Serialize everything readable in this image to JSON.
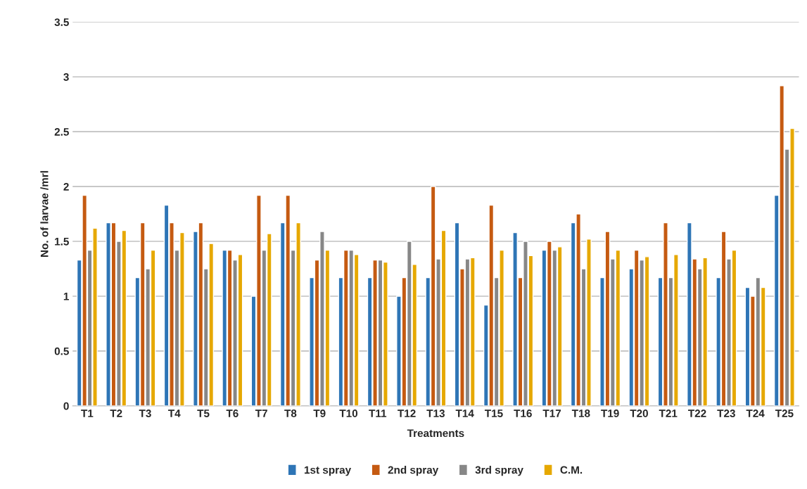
{
  "chart_data": {
    "type": "bar",
    "xlabel": "Treatments",
    "ylabel": "No. of larvae /mrl",
    "categories": [
      "T1",
      "T2",
      "T3",
      "T4",
      "T5",
      "T6",
      "T7",
      "T8",
      "T9",
      "T10",
      "T11",
      "T12",
      "T13",
      "T14",
      "T15",
      "T16",
      "T17",
      "T18",
      "T19",
      "T20",
      "T21",
      "T22",
      "T23",
      "T24",
      "T25"
    ],
    "series": [
      {
        "name": "1st spray",
        "color": "#2e75b6",
        "values": [
          1.33,
          1.67,
          1.17,
          1.83,
          1.59,
          1.42,
          1.0,
          1.67,
          1.17,
          1.17,
          1.17,
          1.0,
          1.17,
          1.67,
          0.92,
          1.58,
          1.42,
          1.67,
          1.17,
          1.25,
          1.17,
          1.67,
          1.17,
          1.08,
          1.92
        ]
      },
      {
        "name": "2nd spray",
        "color": "#c55a11",
        "values": [
          1.92,
          1.67,
          1.67,
          1.67,
          1.67,
          1.42,
          1.92,
          1.92,
          1.33,
          1.42,
          1.33,
          1.17,
          2.0,
          1.25,
          1.83,
          1.17,
          1.5,
          1.75,
          1.59,
          1.42,
          1.67,
          1.34,
          1.59,
          1.0,
          2.92
        ]
      },
      {
        "name": "3rd spray",
        "color": "#878787",
        "values": [
          1.42,
          1.5,
          1.25,
          1.42,
          1.25,
          1.33,
          1.42,
          1.42,
          1.59,
          1.42,
          1.33,
          1.5,
          1.34,
          1.34,
          1.17,
          1.5,
          1.42,
          1.25,
          1.34,
          1.33,
          1.17,
          1.25,
          1.34,
          1.17,
          2.34
        ]
      },
      {
        "name": "C.M.",
        "color": "#e6a800",
        "values": [
          1.62,
          1.6,
          1.42,
          1.58,
          1.48,
          1.38,
          1.57,
          1.67,
          1.42,
          1.38,
          1.31,
          1.29,
          1.6,
          1.35,
          1.42,
          1.37,
          1.45,
          1.52,
          1.42,
          1.36,
          1.38,
          1.35,
          1.42,
          1.08,
          2.53
        ]
      }
    ],
    "ylim": [
      0,
      3.5
    ],
    "yticks": [
      0,
      0.5,
      1,
      1.5,
      2,
      2.5,
      3,
      3.5
    ],
    "grid": "y",
    "legend": "bottom"
  }
}
